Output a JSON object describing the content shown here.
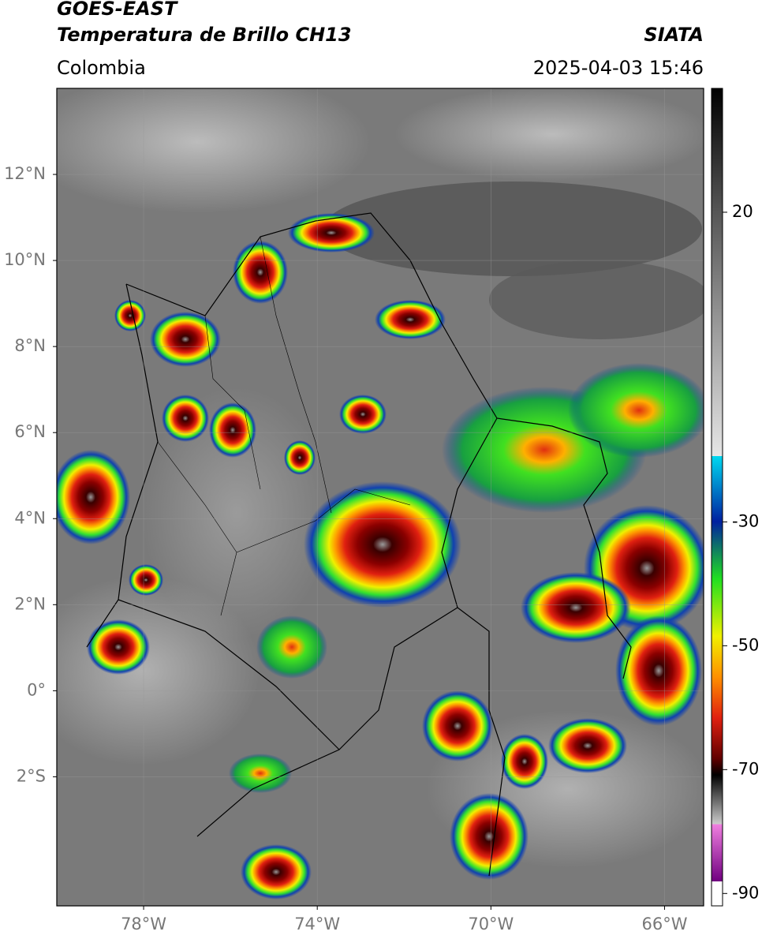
{
  "header": {
    "title_line1": "GOES-EAST",
    "title_line2": "Temperatura de Brillo CH13",
    "region": "Colombia",
    "source": "SIATA",
    "datetime": "2025-04-03 15:46"
  },
  "map": {
    "xlim": [
      -80,
      -65.1
    ],
    "ylim": [
      -5,
      14
    ],
    "lat_ticks": [
      {
        "value": 12,
        "label": "12°N"
      },
      {
        "value": 10,
        "label": "10°N"
      },
      {
        "value": 8,
        "label": "8°N"
      },
      {
        "value": 6,
        "label": "6°N"
      },
      {
        "value": 4,
        "label": "4°N"
      },
      {
        "value": 2,
        "label": "2°N"
      },
      {
        "value": 0,
        "label": "0°"
      },
      {
        "value": -2,
        "label": "2°S"
      }
    ],
    "lon_ticks": [
      {
        "value": -78,
        "label": "78°W"
      },
      {
        "value": -74,
        "label": "74°W"
      },
      {
        "value": -70,
        "label": "70°W"
      },
      {
        "value": -66,
        "label": "66°W"
      }
    ]
  },
  "colorbar": {
    "lim": [
      -92,
      40
    ],
    "ticks": [
      20,
      -30,
      -50,
      -70,
      -90
    ]
  }
}
